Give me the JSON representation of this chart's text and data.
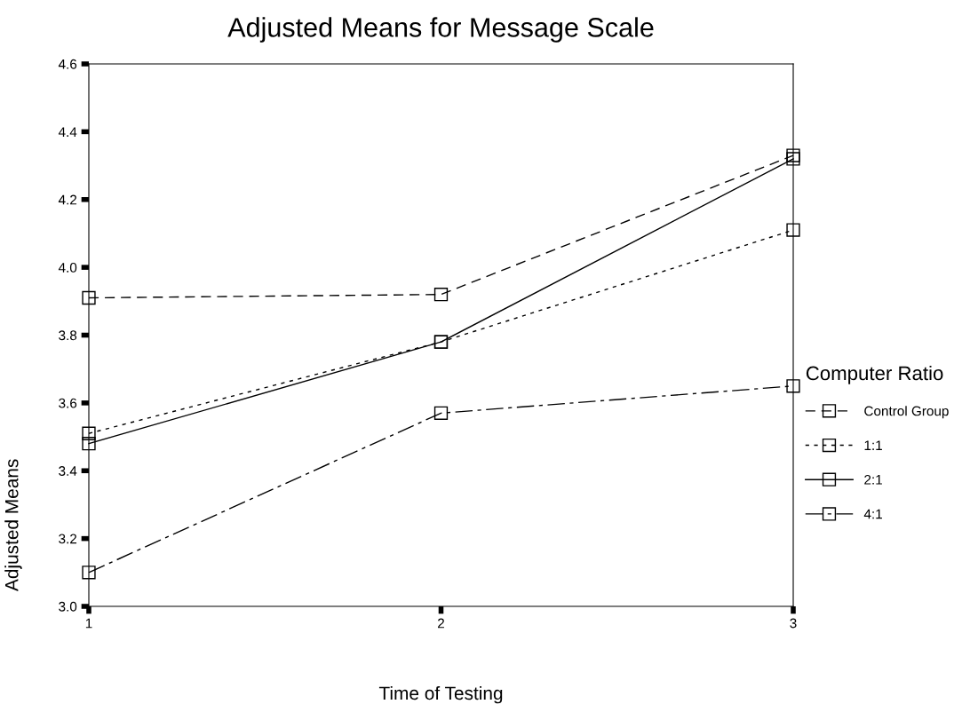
{
  "chart_data": {
    "type": "line",
    "title": "Adjusted Means for Message Scale",
    "xlabel": "Time of Testing",
    "ylabel": "Adjusted Means",
    "legend_title": "Computer Ratio",
    "x": [
      1,
      2,
      3
    ],
    "xlim": [
      1,
      3
    ],
    "xticks": [
      1,
      2,
      3
    ],
    "ylim": [
      3.0,
      4.6
    ],
    "yticks": [
      {
        "value": 3.0,
        "label": "3.0"
      },
      3.2,
      3.4,
      3.6,
      3.8,
      {
        "value": 4.0,
        "label": "4.0"
      },
      4.2,
      4.4,
      4.6
    ],
    "marker": "square",
    "grid": false,
    "legend": "right",
    "series": [
      {
        "name": "Control Group",
        "color": "#000000",
        "line_style": "dashed",
        "values": [
          3.91,
          3.92,
          4.33
        ]
      },
      {
        "name": "1:1",
        "color": "#000000",
        "line_style": "dotted",
        "values": [
          3.51,
          3.78,
          4.11
        ]
      },
      {
        "name": "2:1",
        "color": "#000000",
        "line_style": "solid",
        "values": [
          3.48,
          3.78,
          4.32
        ]
      },
      {
        "name": "4:1",
        "color": "#000000",
        "line_style": "dashdot",
        "values": [
          3.1,
          3.57,
          3.65
        ]
      }
    ]
  }
}
